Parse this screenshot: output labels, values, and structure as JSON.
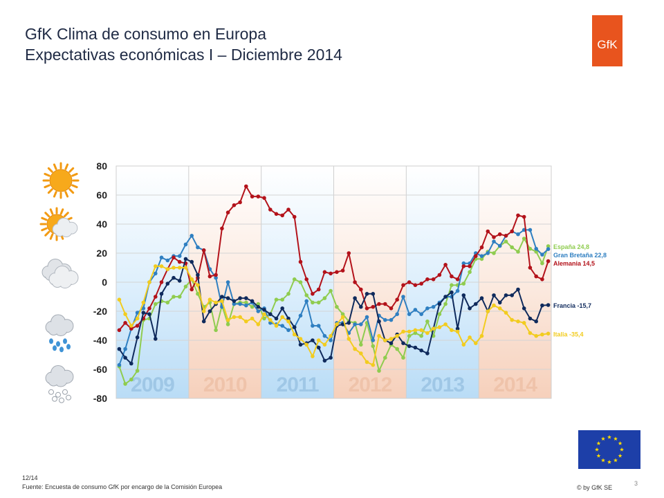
{
  "title_line1": "GfK Clima de consumo en Europa",
  "title_line2": "Expectativas económicas I – Diciembre 2014",
  "logo_text": "GfK",
  "footer": {
    "date": "12/14",
    "source": "Fuente: Encuesta de consumo GfK por encargo de la Comisión Europea",
    "copyright": "© by GfK SE",
    "page": "3"
  },
  "icons": [
    "sun-icon",
    "sun-cloud-icon",
    "cloud-icon",
    "rain-cloud-icon",
    "snow-cloud-icon"
  ],
  "chart_data": {
    "type": "line",
    "ylim": [
      -80,
      80
    ],
    "yticks": [
      80,
      60,
      40,
      20,
      0,
      -20,
      -40,
      -60,
      -80
    ],
    "xlim": [
      0,
      72
    ],
    "years": [
      "2009",
      "2010",
      "2011",
      "2012",
      "2013",
      "2014"
    ],
    "grid": true,
    "legend": "right, labels at line ends",
    "series": [
      {
        "name": "España 24,8",
        "color": "#8fcc4f",
        "values": [
          -58,
          -70,
          -67,
          -61,
          -26,
          -25,
          -15,
          -13,
          -14,
          -10,
          -10,
          -3,
          2,
          -8,
          -17,
          -14,
          -33,
          -16,
          -29,
          -15,
          -14,
          -14,
          -17,
          -15,
          -25,
          -22,
          -12,
          -12,
          -8,
          2,
          0,
          -9,
          -14,
          -14,
          -11,
          -6,
          -17,
          -22,
          -27,
          -28,
          -43,
          -28,
          -44,
          -61,
          -52,
          -43,
          -46,
          -52,
          -37,
          -35,
          -37,
          -27,
          -37,
          -22,
          -15,
          -2,
          -2,
          -1,
          7,
          16,
          16,
          21,
          20,
          25,
          28,
          24,
          21,
          30,
          23,
          21,
          13,
          24.8
        ]
      },
      {
        "name": "Gran Bretaña 22,8",
        "color": "#2f7fc1",
        "values": [
          -57,
          -46,
          -32,
          -21,
          -18,
          0,
          6,
          17,
          15,
          18,
          18,
          26,
          32,
          24,
          22,
          9,
          3,
          -17,
          0,
          -15,
          -15,
          -16,
          -14,
          -20,
          -18,
          -28,
          -29,
          -30,
          -33,
          -31,
          -23,
          -13,
          -30,
          -30,
          -37,
          -40,
          -28,
          -28,
          -35,
          -29,
          -29,
          -24,
          -40,
          -23,
          -26,
          -26,
          -22,
          -10,
          -22,
          -19,
          -22,
          -18,
          -17,
          -14,
          -10,
          -10,
          -6,
          13,
          13,
          20,
          18,
          20,
          28,
          25,
          32,
          35,
          33,
          36,
          36,
          23,
          19,
          22.8
        ]
      },
      {
        "name": "Alemania 14,5",
        "color": "#b3121a",
        "values": [
          -33,
          -28,
          -32,
          -30,
          -25,
          -18,
          -10,
          0,
          9,
          17,
          14,
          13,
          -5,
          3,
          22,
          4,
          5,
          37,
          48,
          53,
          55,
          66,
          59,
          59,
          58,
          50,
          47,
          46,
          50,
          45,
          14,
          2,
          -8,
          -5,
          7,
          6,
          7,
          8,
          20,
          0,
          -5,
          -18,
          -17,
          -15,
          -15,
          -18,
          -12,
          -2,
          0,
          -2,
          -1,
          2,
          2,
          5,
          12,
          4,
          2,
          11,
          11,
          18,
          24,
          35,
          31,
          33,
          32,
          35,
          46,
          45,
          10,
          4,
          2,
          14.5
        ]
      },
      {
        "name": "Francia -15,7",
        "color": "#0f2a5c",
        "values": [
          -46,
          -52,
          -56,
          -38,
          -21,
          -22,
          -39,
          -8,
          -1,
          3,
          1,
          16,
          14,
          5,
          -27,
          -20,
          -15,
          -10,
          -11,
          -13,
          -11,
          -11,
          -13,
          -17,
          -19,
          -22,
          -25,
          -18,
          -25,
          -31,
          -43,
          -42,
          -40,
          -45,
          -54,
          -52,
          -30,
          -29,
          -28,
          -11,
          -17,
          -8,
          -8,
          -27,
          -40,
          -42,
          -36,
          -42,
          -44,
          -45,
          -47,
          -49,
          -32,
          -15,
          -10,
          -7,
          -32,
          -9,
          -18,
          -15,
          -11,
          -20,
          -9,
          -14,
          -9,
          -9,
          -5,
          -18,
          -25,
          -27,
          -16,
          -15.7
        ]
      },
      {
        "name": "Italia -35,4",
        "color": "#f2cc1f",
        "values": [
          -12,
          -22,
          -30,
          -25,
          -14,
          0,
          11,
          11,
          9,
          10,
          10,
          10,
          2,
          -2,
          -20,
          -12,
          -14,
          -13,
          -26,
          -24,
          -24,
          -27,
          -25,
          -29,
          -22,
          -26,
          -30,
          -24,
          -27,
          -36,
          -39,
          -43,
          -51,
          -40,
          -43,
          -37,
          -29,
          -24,
          -39,
          -46,
          -49,
          -55,
          -57,
          -37,
          -40,
          -39,
          -37,
          -34,
          -34,
          -33,
          -33,
          -35,
          -32,
          -31,
          -29,
          -33,
          -34,
          -43,
          -38,
          -42,
          -37,
          -20,
          -16,
          -18,
          -21,
          -26,
          -27,
          -28,
          -35,
          -37,
          -36,
          -35.4
        ]
      }
    ]
  }
}
